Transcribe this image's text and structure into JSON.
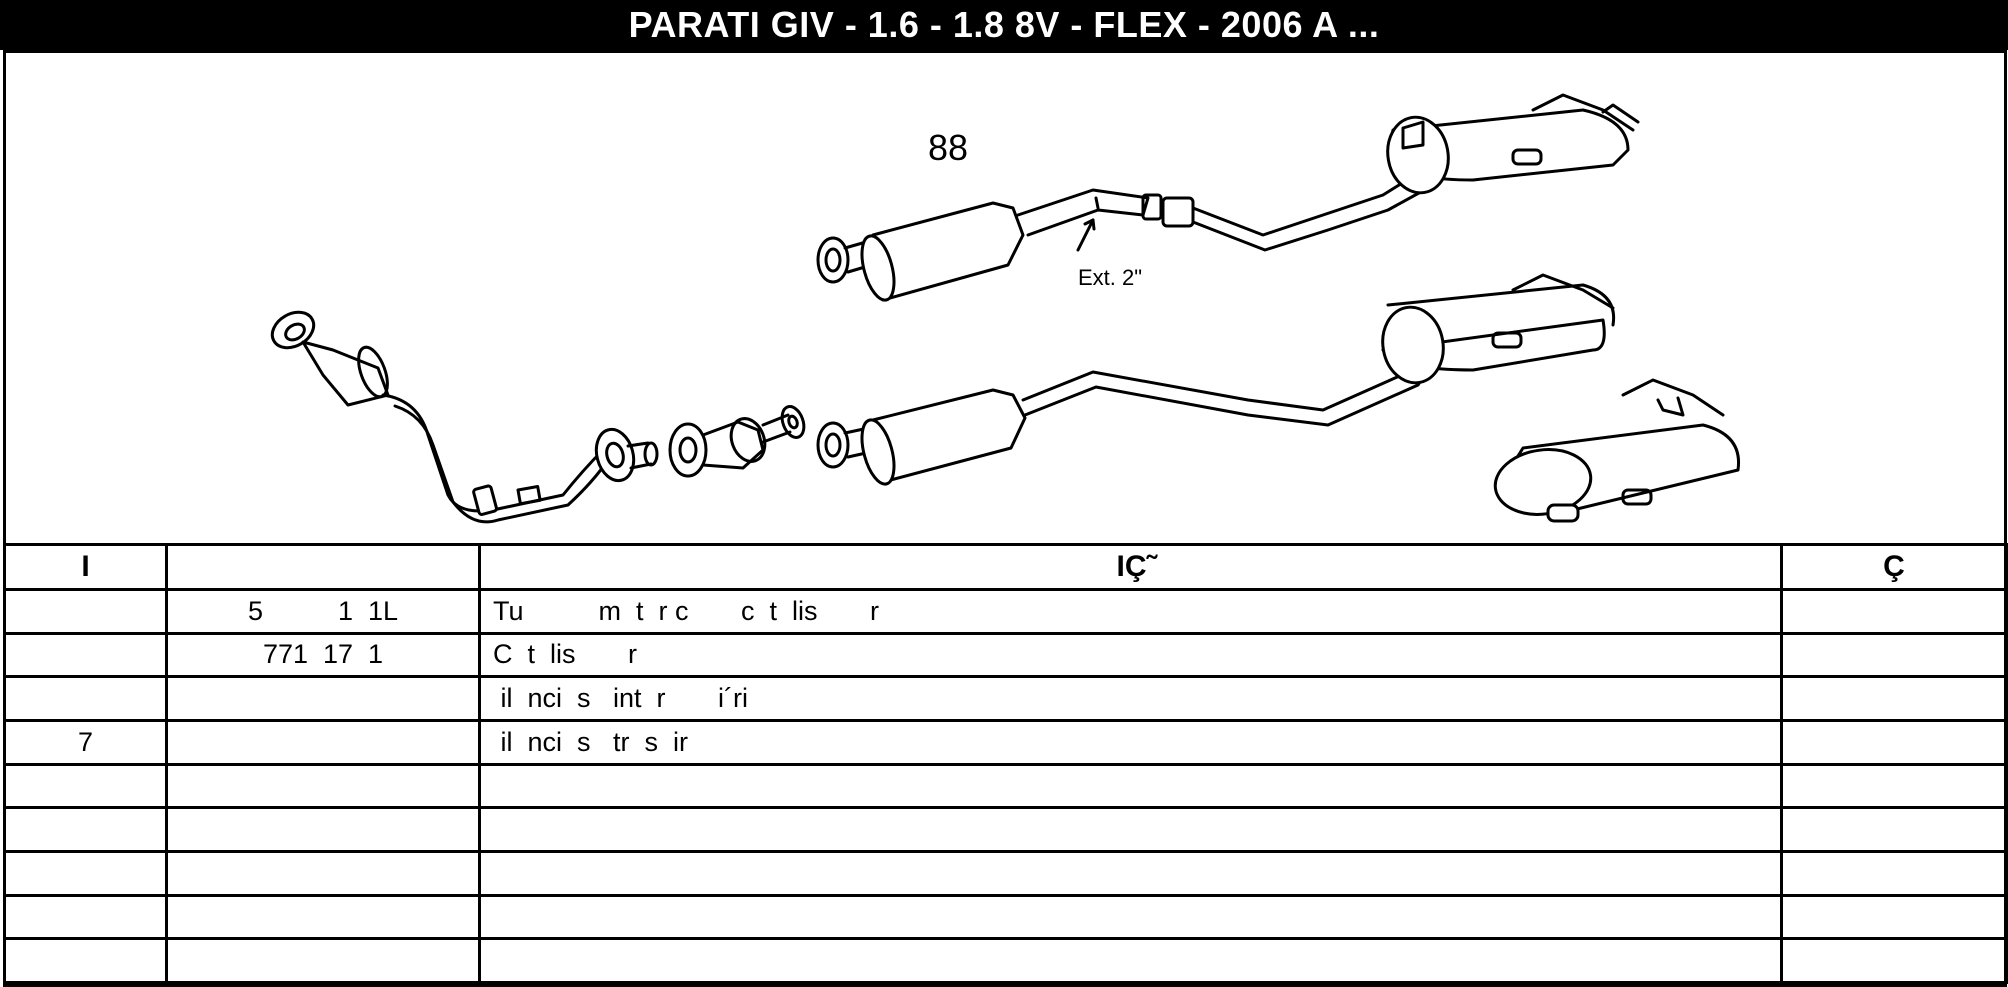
{
  "title": "PARATI GIV - 1.6 - 1.8 8V - FLEX - 2006 A ...",
  "diagram": {
    "part_label": "88",
    "ext_label": "Ext. 2\""
  },
  "table": {
    "headers": [
      "I",
      "",
      "IÇ˜",
      "Ç"
    ],
    "rows": [
      [
        "",
        "5          1  1L",
        "Tu          m  t  r c       c  t  lis       r",
        ""
      ],
      [
        "",
        "771  17  1",
        "C  t  lis       r",
        ""
      ],
      [
        "",
        "",
        " il  nci  s   int  r       i´ri",
        ""
      ],
      [
        "7",
        "",
        " il  nci  s   tr  s  ir",
        ""
      ],
      [
        "",
        "",
        "",
        ""
      ],
      [
        "",
        "",
        "",
        ""
      ],
      [
        "",
        "",
        "",
        ""
      ],
      [
        "",
        "",
        "",
        ""
      ],
      [
        "",
        "",
        "",
        ""
      ]
    ]
  }
}
